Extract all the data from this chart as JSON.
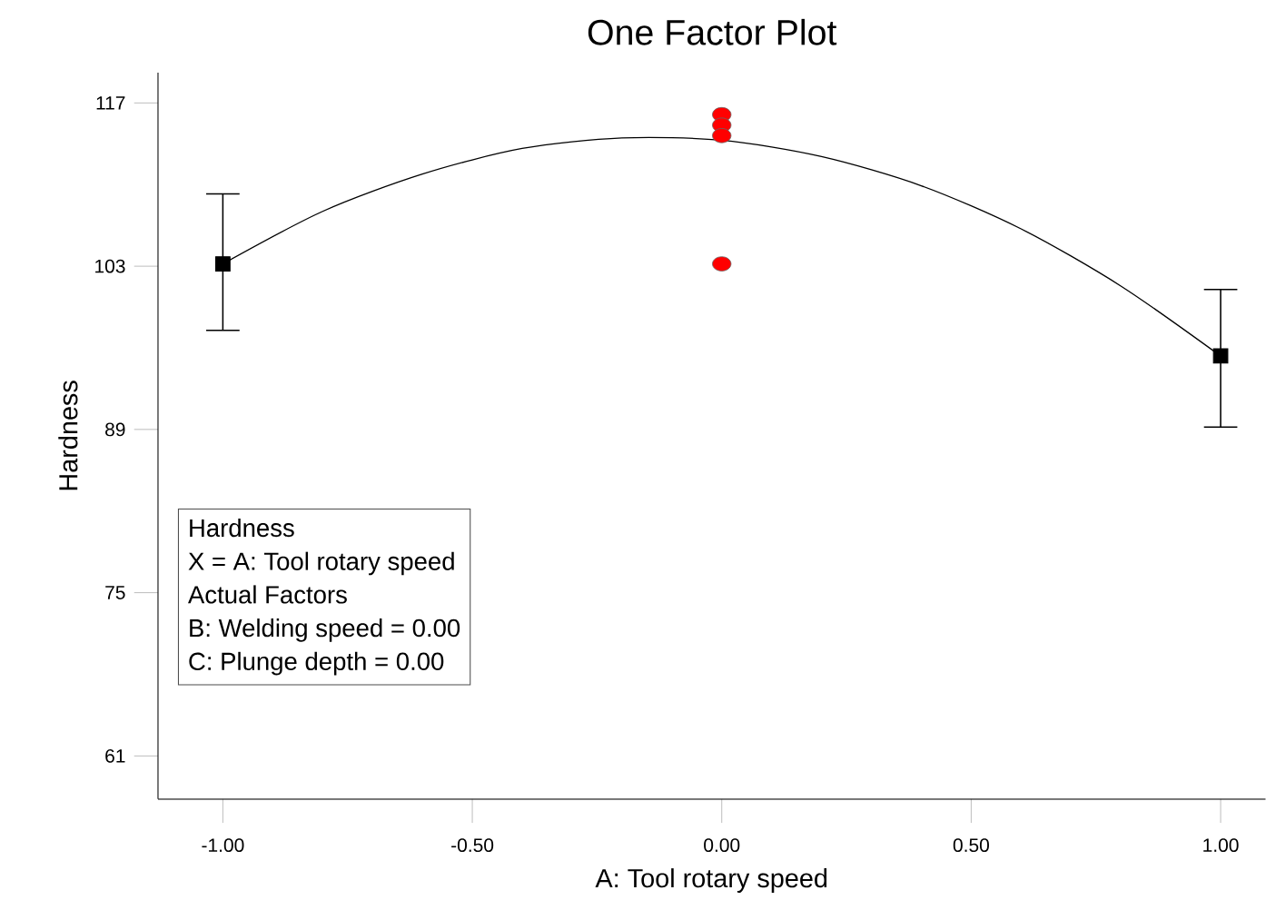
{
  "chart_data": {
    "type": "scatter",
    "title": "One Factor Plot",
    "xlabel": "A: Tool rotary speed",
    "ylabel": "Hardness",
    "xlim": [
      -1.13,
      1.09
    ],
    "ylim": [
      57.3,
      119.6
    ],
    "xticks": [
      {
        "value": -1,
        "label": "-1.00"
      },
      {
        "value": -0.5,
        "label": "-0.50"
      },
      {
        "value": 0,
        "label": "0.00"
      },
      {
        "value": 0.5,
        "label": "0.50"
      },
      {
        "value": 1,
        "label": "1.00"
      }
    ],
    "yticks": [
      61,
      75,
      89,
      103,
      117
    ],
    "grid": false,
    "annotations": [
      "Hardness",
      "X = A: Tool rotary speed",
      "Actual Factors",
      "B: Welding speed = 0.00",
      "C: Plunge depth = 0.00"
    ],
    "series": [
      {
        "type": "line",
        "color": "#000000",
        "marker": "none",
        "line_style": "solid",
        "x": [
          -1,
          -0.8,
          -0.6,
          -0.4,
          -0.2,
          0,
          0.2,
          0.4,
          0.6,
          0.8,
          1
        ],
        "values": [
          103.2,
          107.7,
          110.9,
          113.1,
          114.0,
          113.8,
          112.4,
          109.9,
          106.2,
          101.3,
          95.3
        ]
      },
      {
        "color": "#ff0000",
        "marker": "circle",
        "x": [
          0,
          0,
          0,
          0
        ],
        "values": [
          116.0,
          115.1,
          114.2,
          103.2
        ]
      },
      {
        "color": "#000000",
        "marker": "square",
        "x": [
          -1,
          1
        ],
        "values": [
          103.2,
          95.3
        ],
        "errors": [
          [
            97.5,
            109.2
          ],
          [
            89.2,
            101.0
          ]
        ]
      }
    ]
  }
}
